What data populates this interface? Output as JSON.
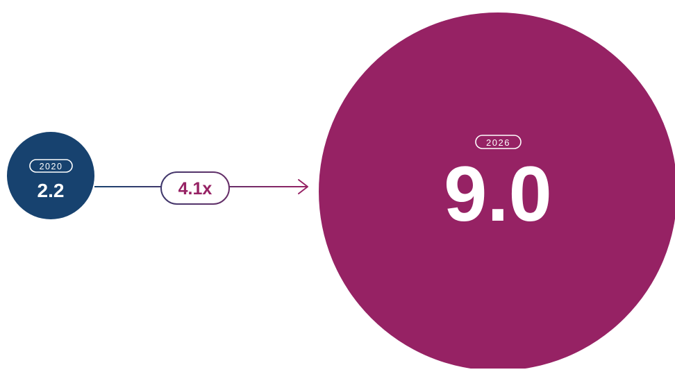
{
  "chart_data": {
    "type": "bubble",
    "points": [
      {
        "year": "2020",
        "value": "2.2",
        "color": "#17426f"
      },
      {
        "year": "2026",
        "value": "9.0",
        "color": "#962264"
      }
    ],
    "growth_label": "4.1x",
    "growth_color": "#962264",
    "connector_start_color": "#17426f",
    "connector_end_color": "#962264"
  }
}
